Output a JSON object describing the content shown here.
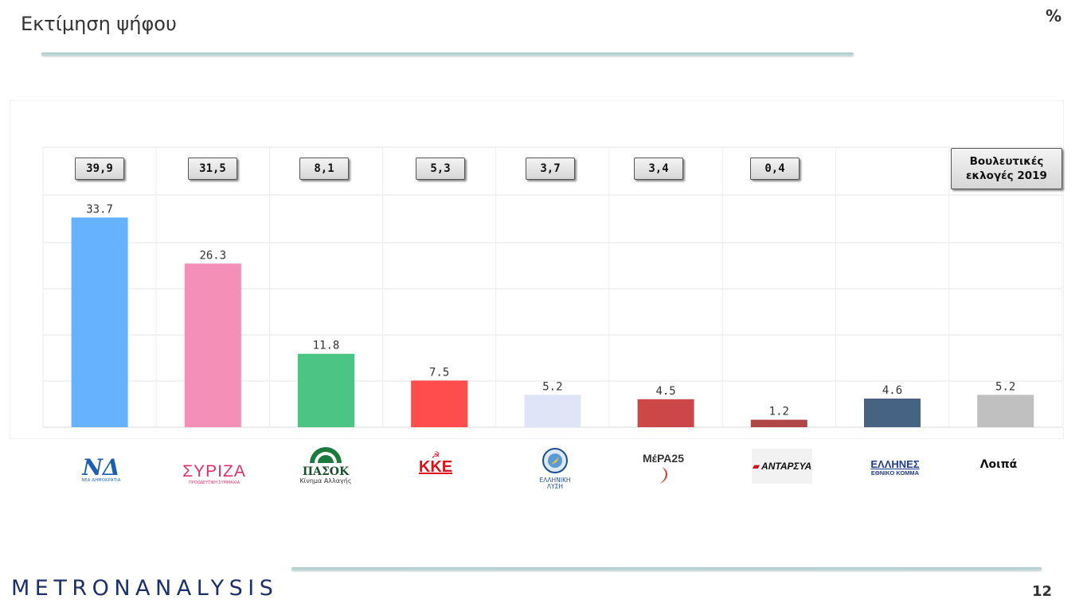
{
  "header": {
    "title": "Εκτίμηση ψήφου",
    "unit": "%"
  },
  "chart_data": {
    "type": "bar",
    "categories": [
      "ΝΔ",
      "ΣΥΡΙΖΑ",
      "ΠΑΣΟΚ",
      "ΚΚΕ",
      "ΕΛΛΗΝΙΚΗ ΛΥΣΗ",
      "ΜέΡΑ25",
      "ΑΝΤΑΡΣΥΑ",
      "ΕΛΛΗΝΕΣ",
      "Λοιπά"
    ],
    "values": [
      33.7,
      26.3,
      11.8,
      7.5,
      5.2,
      4.5,
      1.2,
      4.6,
      5.2
    ],
    "value_labels": [
      "33.7",
      "26.3",
      "11.8",
      "7.5",
      "5.2",
      "4.5",
      "1.2",
      "4.6",
      "5.2"
    ],
    "colors": [
      "#66b2ff",
      "#f48fb8",
      "#4cc483",
      "#ff4c4c",
      "#dfe5f6",
      "#cc4848",
      "#b04646",
      "#476383",
      "#c0c0c0"
    ],
    "ylim": [
      0,
      45
    ],
    "grid": true,
    "title": "Εκτίμηση ψήφου",
    "xlabel": "",
    "ylabel": ""
  },
  "election_2019": {
    "label": "Βουλευτικές εκλογές 2019",
    "values": [
      "39,9",
      "31,5",
      "8,1",
      "5,3",
      "3,7",
      "3,4",
      "0,4"
    ]
  },
  "logos": {
    "nd": {
      "mark": "ΝΔ",
      "sub": "ΝΕΑ ΔΗΜΟΚΡΑΤΙΑ",
      "color": "#1c5fae"
    },
    "syriza": {
      "mark": "ΣΥΡΙΖΑ",
      "sub": "ΠΡΟΟΔΕΥΤΙΚΗ ΣΥΜΜΑΧΙΑ",
      "color": "#e0306a"
    },
    "pasok": {
      "mark": "ΠΑΣΟΚ",
      "sub": "Κίνημα Αλλαγής",
      "color": "#1b4d2e"
    },
    "kke": {
      "mark": "ΚΚΕ",
      "color": "#e0101a"
    },
    "el": {
      "line1": "ΕΛΛΗΝΙΚΗ",
      "line2": "ΛΥΣΗ"
    },
    "mera": {
      "mark": "ΜέΡΑ25"
    },
    "antarsya": {
      "mark": "ΑΝΤΑΡΣΥΑ"
    },
    "ellines": {
      "mark": "ΕΛΛΗΝΕΣ",
      "sub": "ΕΘΝΙΚΟ ΚΟΜΜΑ"
    },
    "other": {
      "label": "Λοιπά"
    }
  },
  "footer": {
    "brand": "METRONANALYSIS",
    "page": "12"
  }
}
